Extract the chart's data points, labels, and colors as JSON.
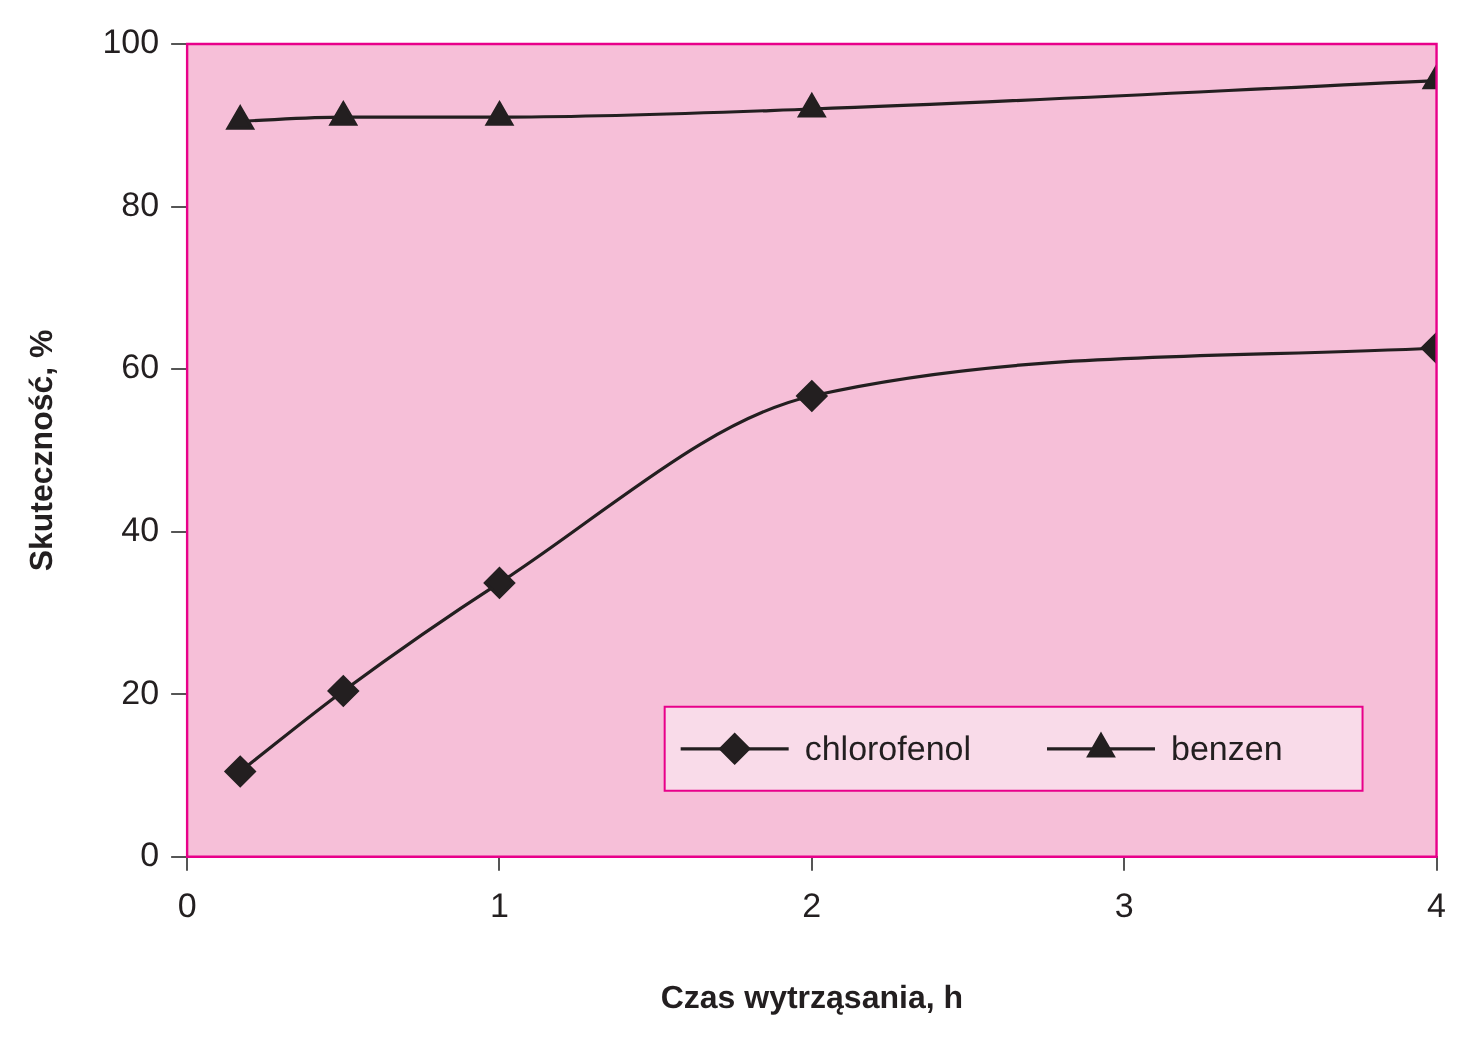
{
  "chart_data": {
    "type": "line",
    "xlabel": "Czas wytrząsania, h",
    "ylabel": "Skuteczność, %",
    "x": [
      0.17,
      0.5,
      1,
      2,
      4
    ],
    "series": [
      {
        "name": "chlorofenol",
        "color": "#231f20",
        "marker": "diamond",
        "values": [
          10.5,
          20.4,
          33.7,
          56.7,
          62.6
        ]
      },
      {
        "name": "benzen",
        "color": "#231f20",
        "marker": "triangle",
        "values": [
          90.5,
          91,
          91,
          92,
          95.5
        ]
      }
    ],
    "xlim": [
      0,
      4
    ],
    "xticks": [
      0,
      1,
      2,
      3,
      4
    ],
    "ylim": [
      0,
      100
    ],
    "yticks": [
      0,
      20,
      40,
      60,
      80,
      100
    ],
    "grid": false,
    "legend": "bottom right",
    "line_style": "solid"
  }
}
